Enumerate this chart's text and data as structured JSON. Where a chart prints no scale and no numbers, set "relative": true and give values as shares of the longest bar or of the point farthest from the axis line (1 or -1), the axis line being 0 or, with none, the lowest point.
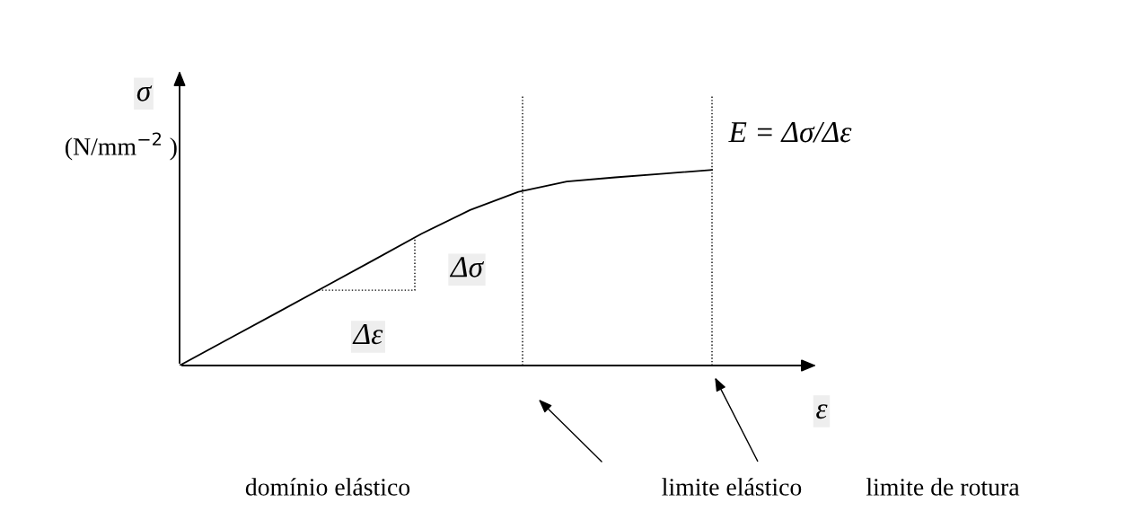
{
  "chart_data": {
    "type": "line",
    "relative": true,
    "xlabel": "ε",
    "ylabel": "σ",
    "categories": [
      null,
      null,
      null,
      null,
      null,
      null,
      null,
      null,
      null,
      null,
      null,
      null
    ],
    "series": [
      {
        "color": "#000000",
        "values": [
          0,
          0.134,
          0.268,
          0.403,
          0.538,
          0.674,
          0.795,
          0.888,
          0.941,
          0.962,
          0.981,
          1
        ]
      }
    ],
    "annotations": [
      "(N/mm$^{−2}$ )",
      "Δσ",
      "Δε",
      "E = Δσ/Δε",
      "domínio elástico",
      "limite elástico",
      "limite de rotura"
    ],
    "legend": false,
    "marker": "none",
    "line_style": "solid"
  }
}
